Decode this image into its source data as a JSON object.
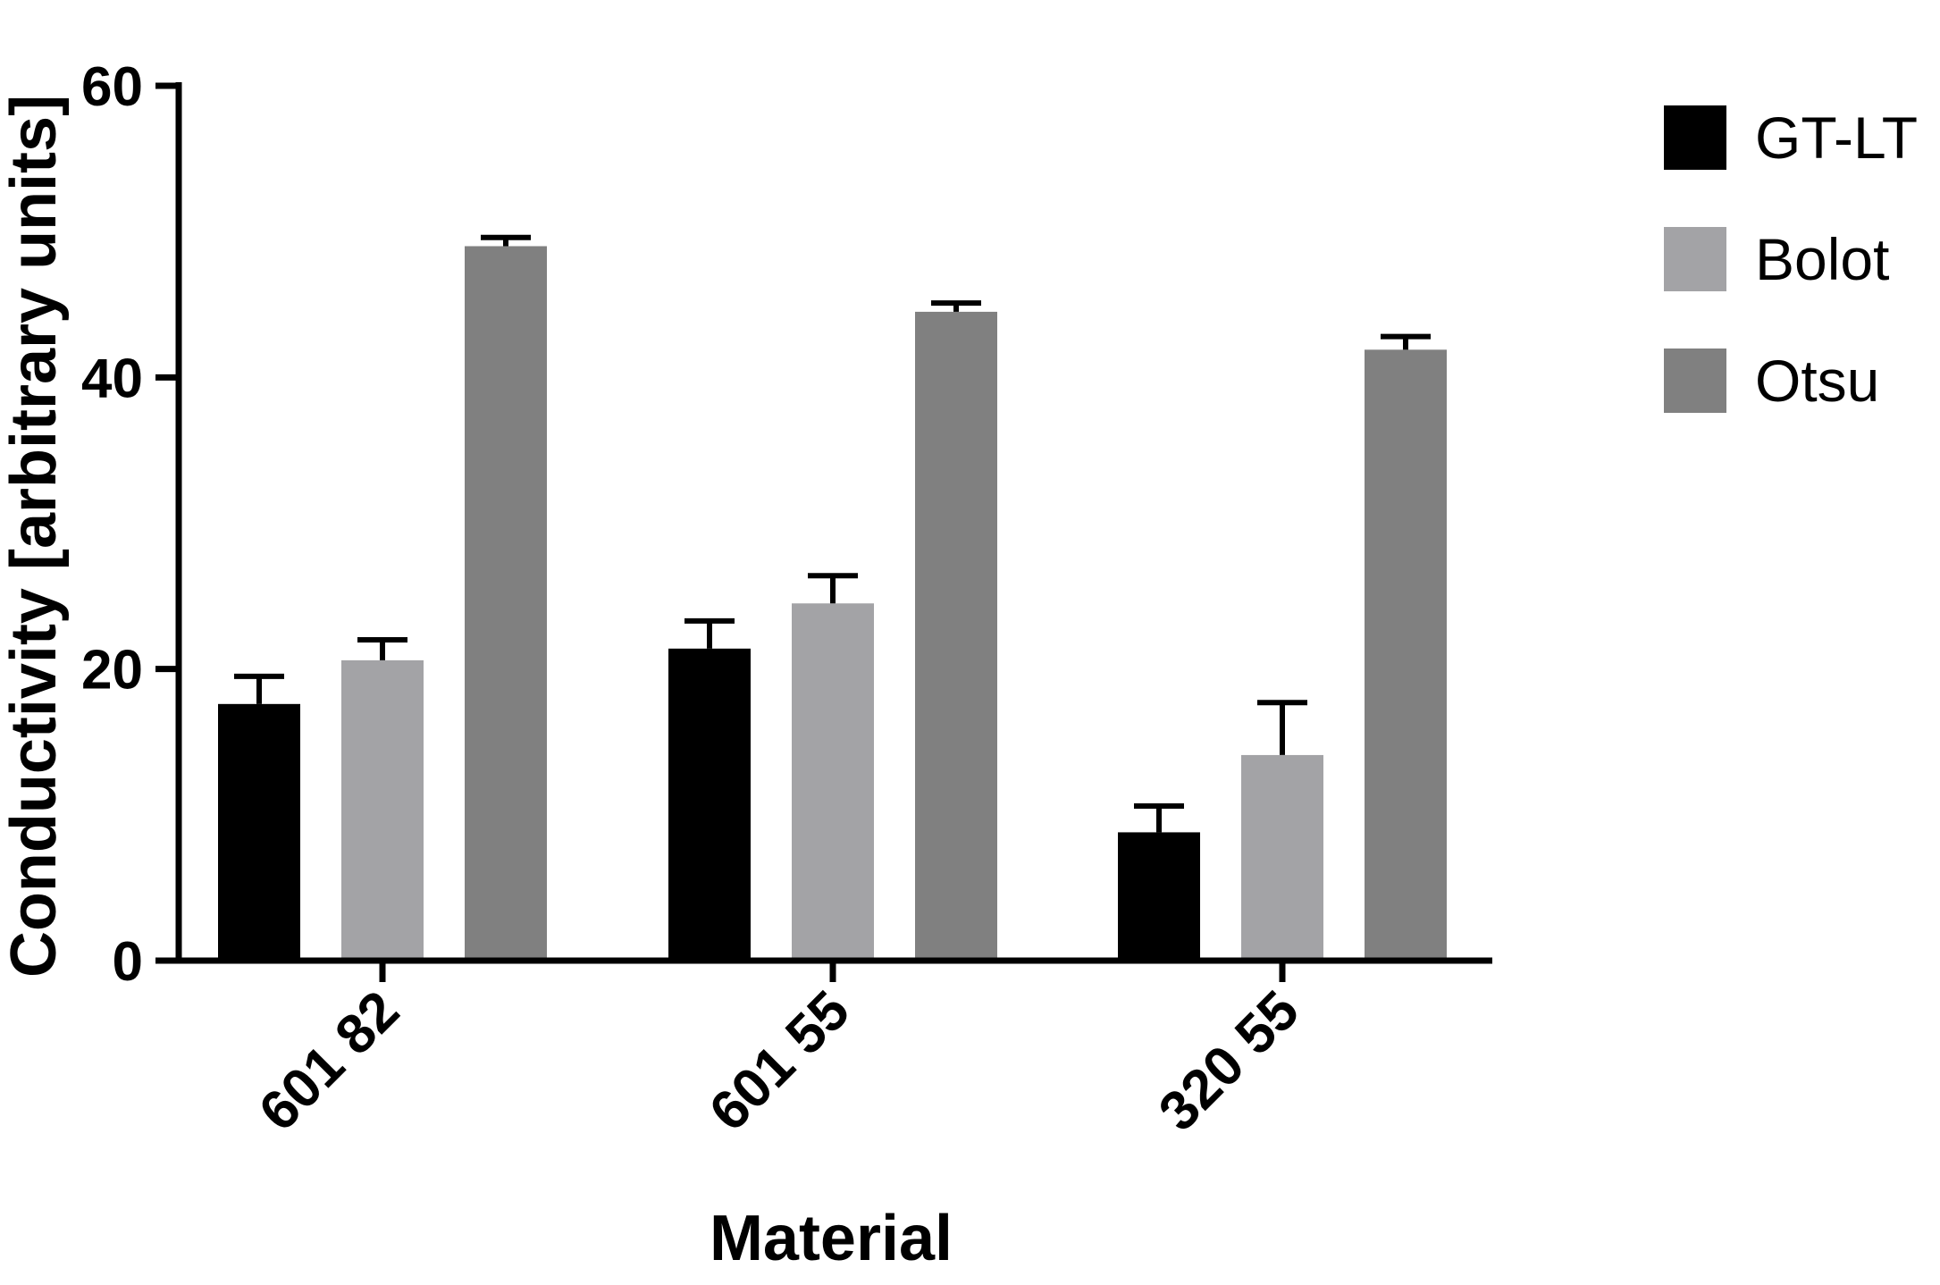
{
  "chart_data": {
    "type": "bar",
    "title": "",
    "xlabel": "Material",
    "ylabel": "Conductivity [arbitrary units]",
    "ylim": [
      0,
      60
    ],
    "yticks": [
      0,
      20,
      40,
      60
    ],
    "categories": [
      "601 82",
      "601 55",
      "320 55"
    ],
    "series": [
      {
        "name": "GT-LT",
        "color": "#000000",
        "values": [
          17.6,
          21.4,
          8.8
        ],
        "errors": [
          1.9,
          1.9,
          1.8
        ]
      },
      {
        "name": "Bolot",
        "color": "#a3a3a6",
        "values": [
          20.6,
          24.5,
          14.1
        ],
        "errors": [
          1.4,
          1.9,
          3.6
        ]
      },
      {
        "name": "Otsu",
        "color": "#808080",
        "values": [
          49.0,
          44.5,
          41.9
        ],
        "errors": [
          0.6,
          0.6,
          0.9
        ]
      }
    ],
    "grid": false,
    "legend": "right"
  }
}
